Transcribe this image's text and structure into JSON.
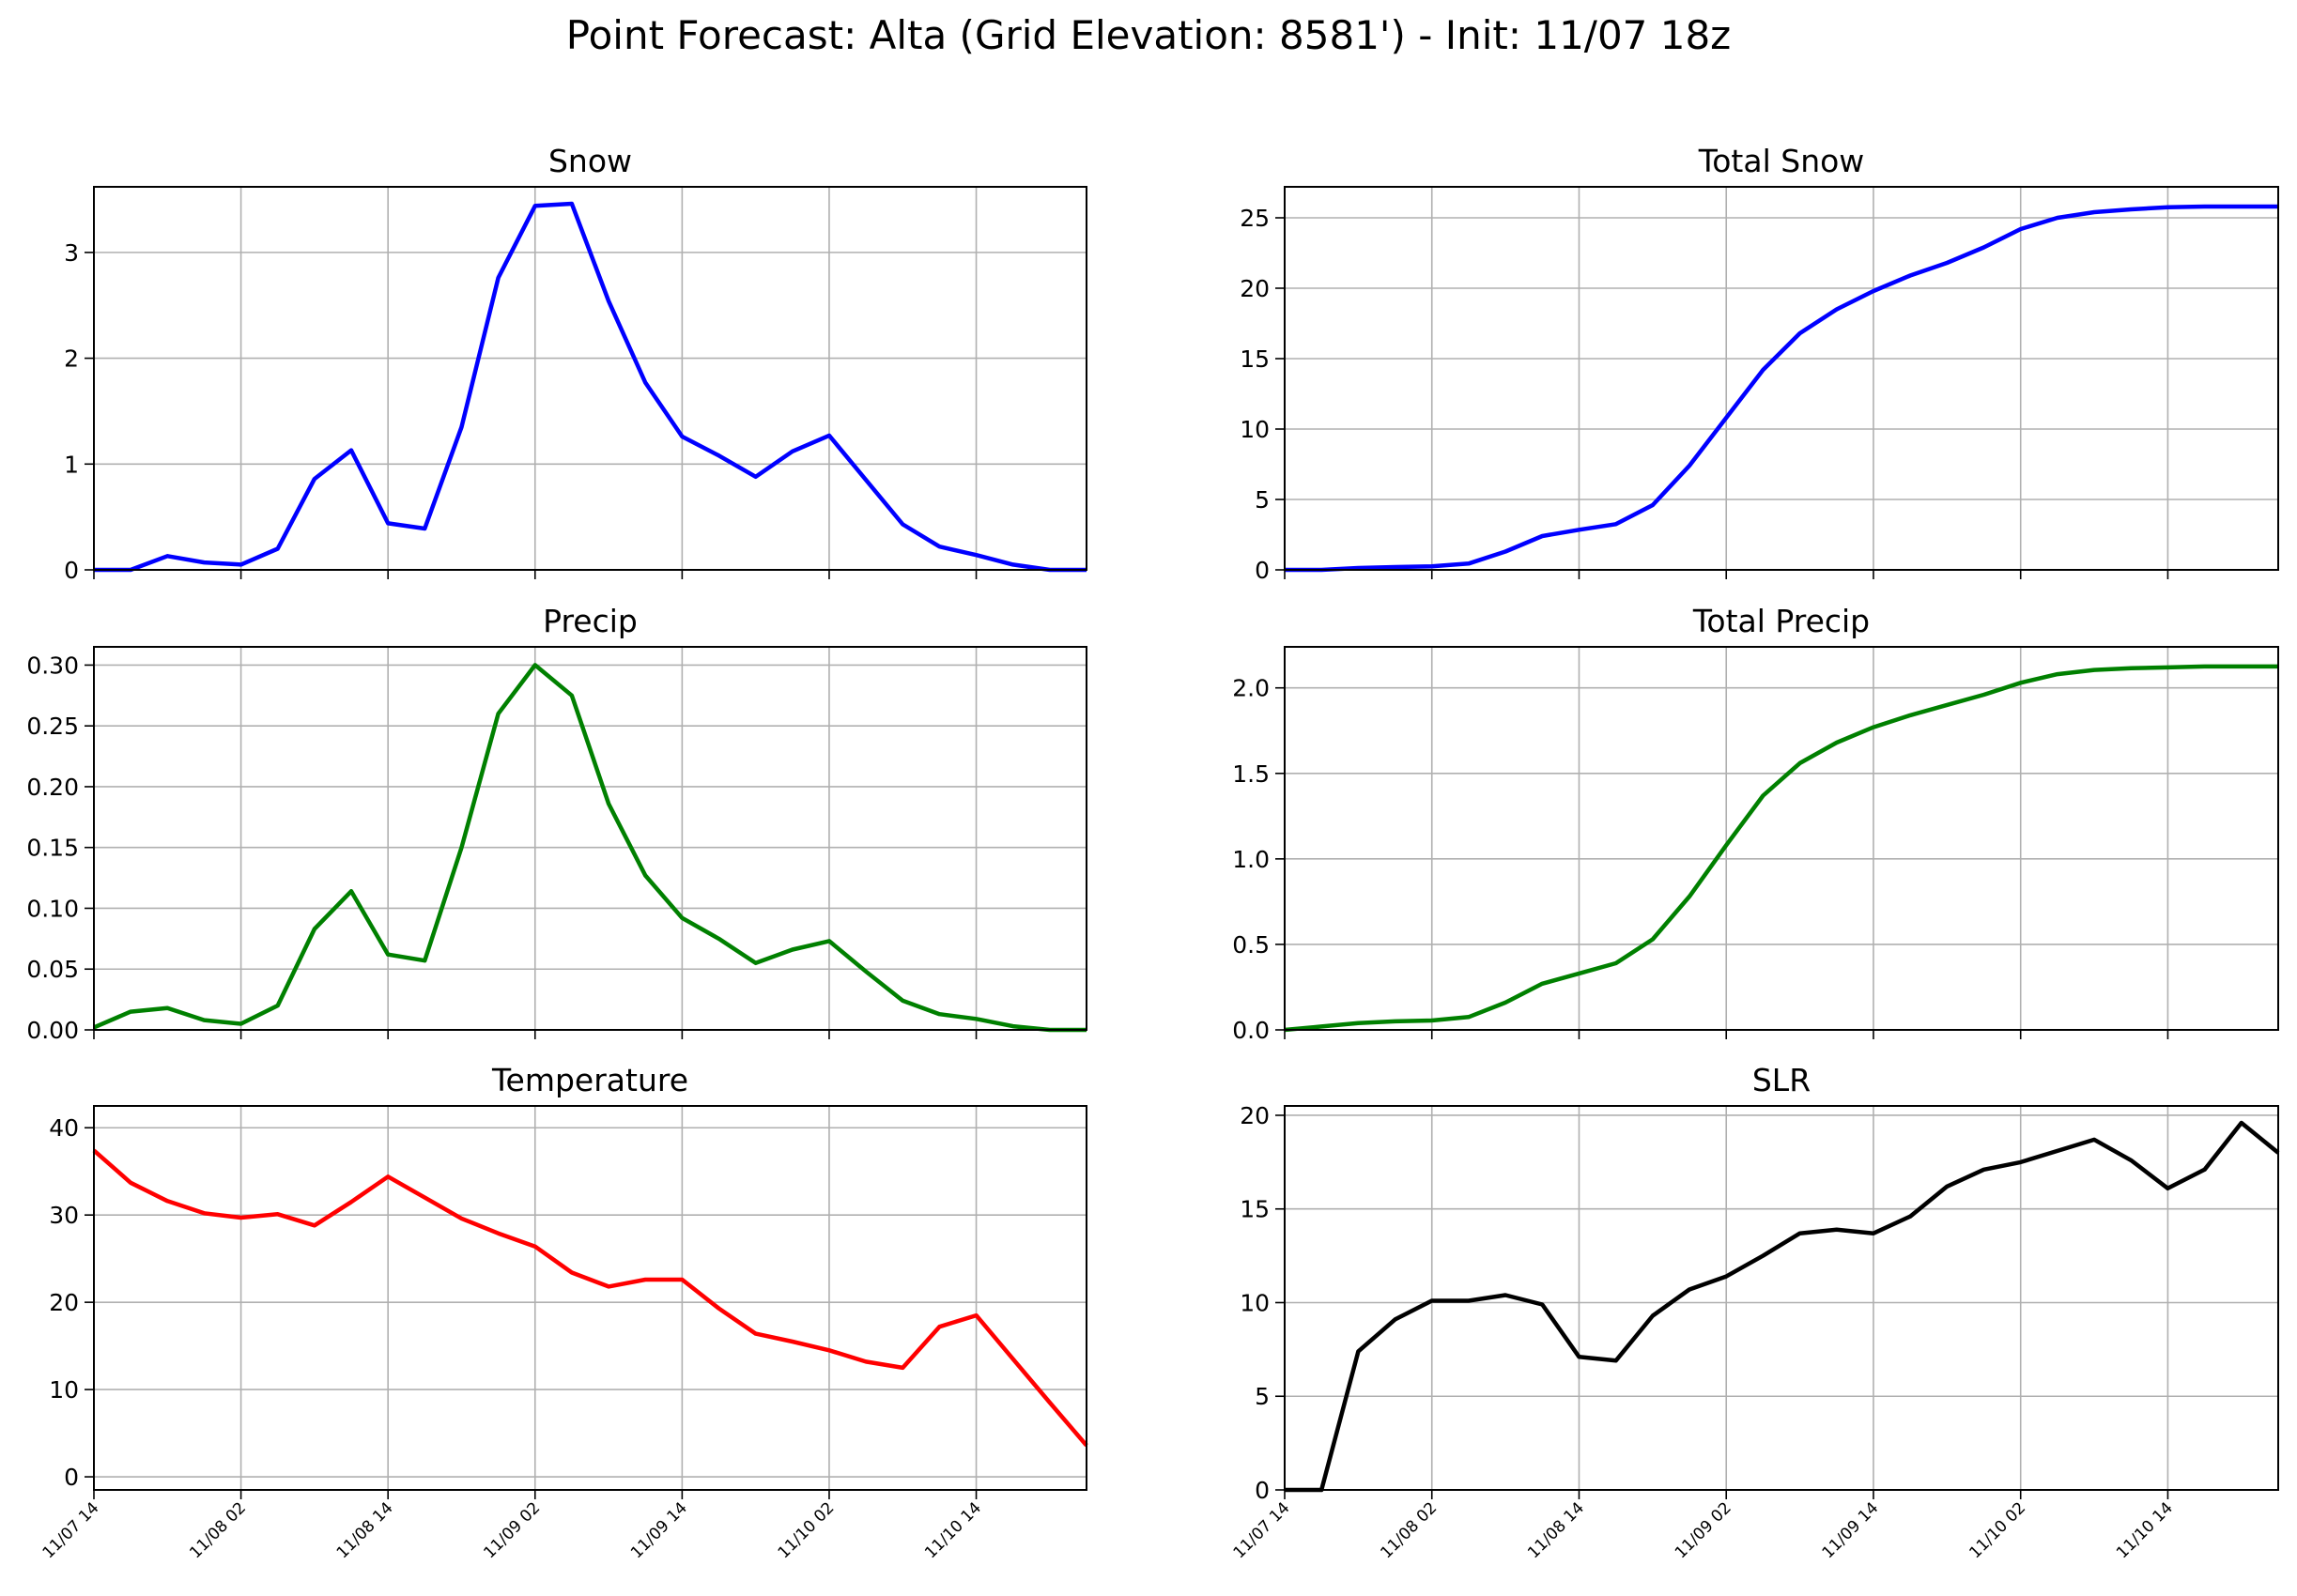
{
  "figure": {
    "title": "Point Forecast: Alta (Grid Elevation: 8581') - Init: 11/07 18z"
  },
  "chart_data": [
    {
      "id": "snow",
      "type": "line",
      "title": "Snow",
      "color": "#0000ff",
      "xlim": [
        0,
        54
      ],
      "ylim": [
        0,
        3.62
      ],
      "yticks": [
        "0",
        "1",
        "2",
        "3"
      ],
      "xtick_positions": [
        0,
        8,
        16,
        24,
        32,
        40,
        48
      ],
      "xtick_labels": [
        "11/07 14",
        "11/08 02",
        "11/08 14",
        "11/09 02",
        "11/09 14",
        "11/10 02",
        "11/10 14"
      ],
      "grid": true,
      "show_xtick_labels": false,
      "series": [
        {
          "x": [
            0,
            2,
            4,
            6,
            8,
            10,
            12,
            14,
            16,
            18,
            20,
            22,
            24,
            26,
            28,
            30,
            32,
            34,
            36,
            38,
            40,
            42,
            44,
            46,
            48,
            50,
            52,
            54
          ],
          "y": [
            0.0,
            0.0,
            0.13,
            0.07,
            0.05,
            0.2,
            0.86,
            1.13,
            0.44,
            0.39,
            1.35,
            2.76,
            3.44,
            3.46,
            2.54,
            1.77,
            1.26,
            1.08,
            0.88,
            1.12,
            1.27,
            0.85,
            0.43,
            0.22,
            0.14,
            0.05,
            0.0,
            0.0
          ]
        }
      ]
    },
    {
      "id": "total-snow",
      "type": "line",
      "title": "Total Snow",
      "color": "#0000ff",
      "xlim": [
        0,
        54
      ],
      "ylim": [
        0,
        27.2
      ],
      "yticks": [
        "0",
        "5",
        "10",
        "15",
        "20",
        "25"
      ],
      "xtick_positions": [
        0,
        8,
        16,
        24,
        32,
        40,
        48
      ],
      "xtick_labels": [
        "11/07 14",
        "11/08 02",
        "11/08 14",
        "11/09 02",
        "11/09 14",
        "11/10 02",
        "11/10 14"
      ],
      "grid": true,
      "show_xtick_labels": false,
      "series": [
        {
          "x": [
            0,
            2,
            4,
            6,
            8,
            10,
            12,
            14,
            16,
            18,
            20,
            22,
            24,
            26,
            28,
            30,
            32,
            34,
            36,
            38,
            40,
            42,
            44,
            46,
            48,
            50,
            52,
            54
          ],
          "y": [
            0.0,
            0.0,
            0.13,
            0.2,
            0.25,
            0.45,
            1.3,
            2.4,
            2.85,
            3.25,
            4.6,
            7.4,
            10.8,
            14.2,
            16.8,
            18.5,
            19.8,
            20.9,
            21.8,
            22.9,
            24.2,
            25.0,
            25.4,
            25.6,
            25.75,
            25.8,
            25.8,
            25.8
          ]
        }
      ]
    },
    {
      "id": "precip",
      "type": "line",
      "title": "Precip",
      "color": "#008000",
      "xlim": [
        0,
        54
      ],
      "ylim": [
        0,
        0.315
      ],
      "yticks": [
        "0.00",
        "0.05",
        "0.10",
        "0.15",
        "0.20",
        "0.25",
        "0.30"
      ],
      "xtick_positions": [
        0,
        8,
        16,
        24,
        32,
        40,
        48
      ],
      "xtick_labels": [
        "11/07 14",
        "11/08 02",
        "11/08 14",
        "11/09 02",
        "11/09 14",
        "11/10 02",
        "11/10 14"
      ],
      "grid": true,
      "show_xtick_labels": false,
      "series": [
        {
          "x": [
            0,
            2,
            4,
            6,
            8,
            10,
            12,
            14,
            16,
            18,
            20,
            22,
            24,
            26,
            28,
            30,
            32,
            34,
            36,
            38,
            40,
            42,
            44,
            46,
            48,
            50,
            52,
            54
          ],
          "y": [
            0.002,
            0.015,
            0.018,
            0.008,
            0.005,
            0.02,
            0.083,
            0.114,
            0.062,
            0.057,
            0.15,
            0.26,
            0.3,
            0.275,
            0.186,
            0.127,
            0.092,
            0.075,
            0.055,
            0.066,
            0.073,
            0.048,
            0.024,
            0.013,
            0.009,
            0.003,
            0.0,
            0.0
          ]
        }
      ]
    },
    {
      "id": "total-precip",
      "type": "line",
      "title": "Total Precip",
      "color": "#008000",
      "xlim": [
        0,
        54
      ],
      "ylim": [
        0,
        2.24
      ],
      "yticks": [
        "0.0",
        "0.5",
        "1.0",
        "1.5",
        "2.0"
      ],
      "xtick_positions": [
        0,
        8,
        16,
        24,
        32,
        40,
        48
      ],
      "xtick_labels": [
        "11/07 14",
        "11/08 02",
        "11/08 14",
        "11/09 02",
        "11/09 14",
        "11/10 02",
        "11/10 14"
      ],
      "grid": true,
      "show_xtick_labels": false,
      "series": [
        {
          "x": [
            0,
            2,
            4,
            6,
            8,
            10,
            12,
            14,
            16,
            18,
            20,
            22,
            24,
            26,
            28,
            30,
            32,
            34,
            36,
            38,
            40,
            42,
            44,
            46,
            48,
            50,
            52,
            54
          ],
          "y": [
            0.0,
            0.02,
            0.04,
            0.05,
            0.055,
            0.075,
            0.16,
            0.27,
            0.33,
            0.39,
            0.53,
            0.78,
            1.08,
            1.37,
            1.56,
            1.68,
            1.77,
            1.84,
            1.9,
            1.96,
            2.03,
            2.08,
            2.105,
            2.115,
            2.12,
            2.125,
            2.125,
            2.125
          ]
        }
      ]
    },
    {
      "id": "temperature",
      "type": "line",
      "title": "Temperature",
      "color": "#ff0000",
      "xlim": [
        0,
        54
      ],
      "ylim": [
        -1.5,
        42.5
      ],
      "yticks": [
        "0",
        "10",
        "20",
        "30",
        "40"
      ],
      "xtick_positions": [
        0,
        8,
        16,
        24,
        32,
        40,
        48
      ],
      "xtick_labels": [
        "11/07 14",
        "11/08 02",
        "11/08 14",
        "11/09 02",
        "11/09 14",
        "11/10 02",
        "11/10 14"
      ],
      "grid": true,
      "show_xtick_labels": true,
      "series": [
        {
          "x": [
            0,
            2,
            4,
            6,
            8,
            10,
            12,
            14,
            16,
            18,
            20,
            22,
            24,
            26,
            28,
            30,
            32,
            34,
            36,
            38,
            40,
            42,
            44,
            46,
            48,
            50,
            52,
            54
          ],
          "y": [
            37.4,
            33.7,
            31.6,
            30.2,
            29.7,
            30.1,
            28.8,
            31.5,
            34.4,
            32.0,
            29.6,
            27.9,
            26.4,
            23.4,
            21.8,
            22.6,
            22.6,
            19.3,
            16.4,
            15.5,
            14.5,
            13.2,
            12.5,
            17.2,
            18.5,
            13.5,
            8.5,
            3.6
          ]
        }
      ]
    },
    {
      "id": "slr",
      "type": "line",
      "title": "SLR",
      "color": "#000000",
      "xlim": [
        0,
        54
      ],
      "ylim": [
        0,
        20.5
      ],
      "yticks": [
        "0",
        "5",
        "10",
        "15",
        "20"
      ],
      "xtick_positions": [
        0,
        8,
        16,
        24,
        32,
        40,
        48
      ],
      "xtick_labels": [
        "11/07 14",
        "11/08 02",
        "11/08 14",
        "11/09 02",
        "11/09 14",
        "11/10 02",
        "11/10 14"
      ],
      "grid": true,
      "show_xtick_labels": true,
      "series": [
        {
          "x": [
            0,
            2,
            4,
            6,
            8,
            10,
            12,
            14,
            16,
            18,
            20,
            22,
            24,
            26,
            28,
            30,
            32,
            34,
            36,
            38,
            40,
            42,
            44,
            46,
            48,
            50,
            52,
            54
          ],
          "y": [
            0.0,
            0.0,
            7.4,
            9.1,
            10.1,
            10.1,
            10.4,
            9.9,
            7.1,
            6.9,
            9.3,
            10.7,
            11.4,
            12.5,
            13.7,
            13.9,
            13.7,
            14.6,
            16.2,
            17.1,
            17.5,
            18.1,
            18.7,
            17.6,
            16.1,
            17.1,
            19.6,
            18.0
          ]
        }
      ]
    }
  ]
}
